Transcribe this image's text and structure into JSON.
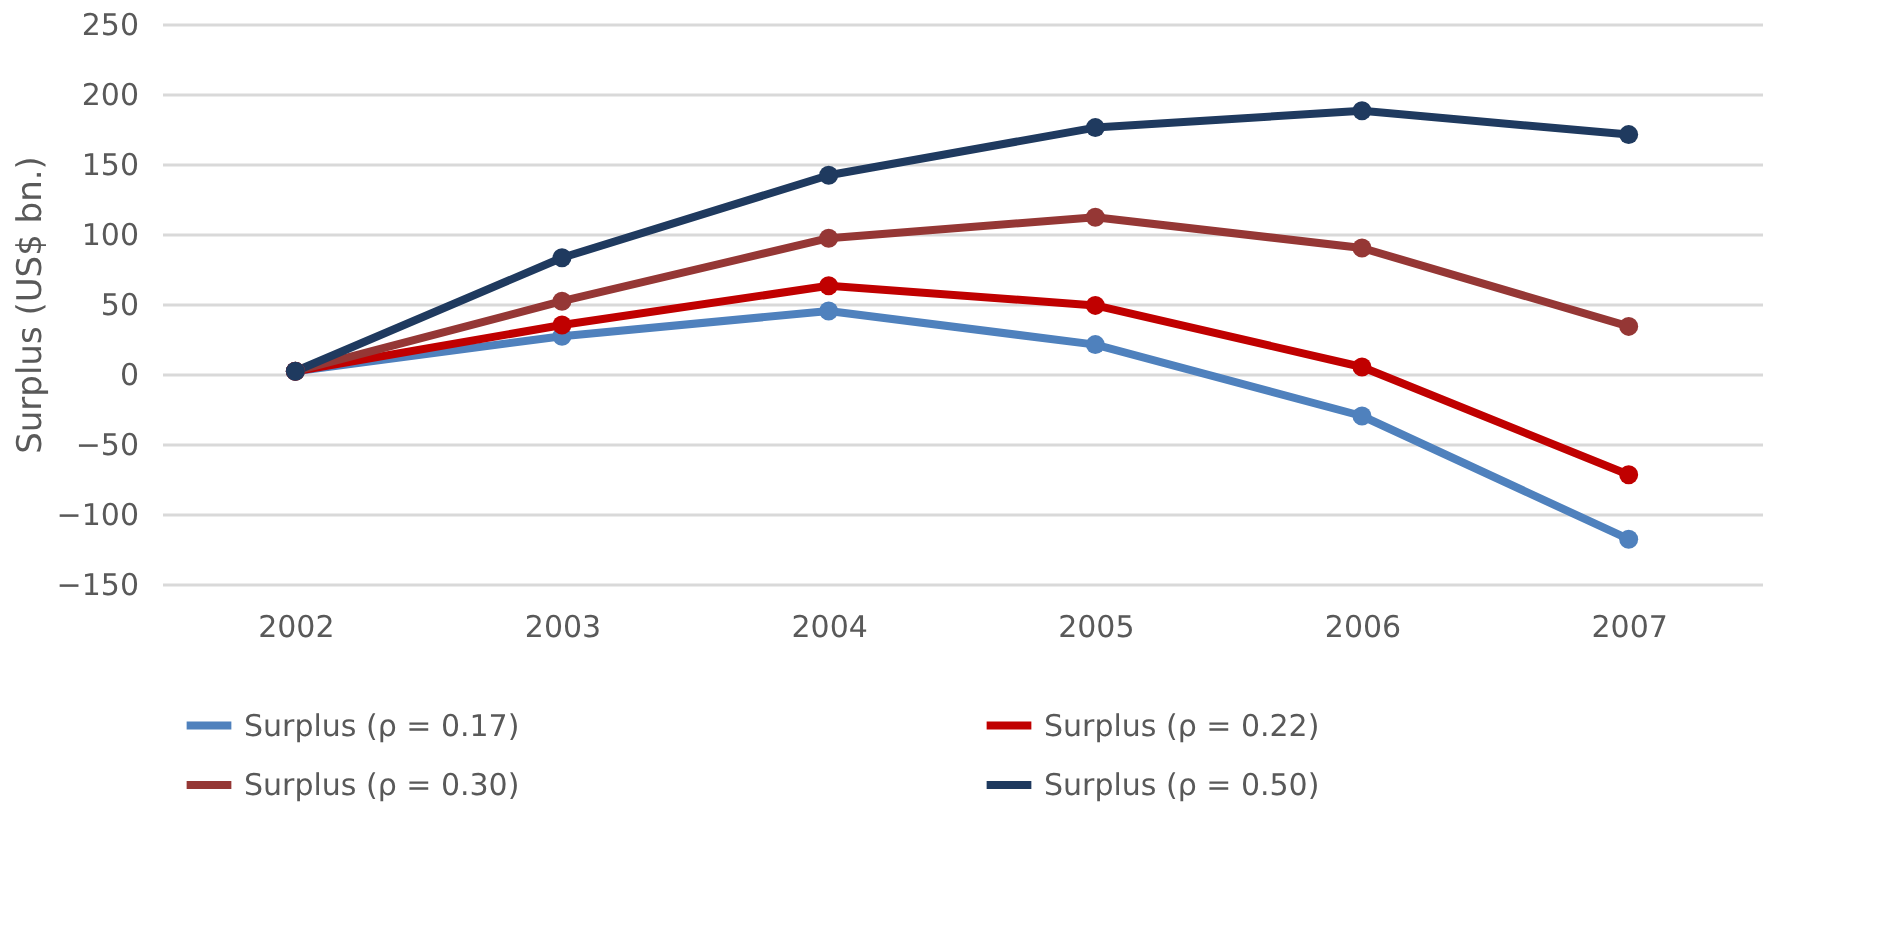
{
  "chart_data": {
    "type": "line",
    "ylabel": "Surplus (US$ bn.)",
    "categories": [
      "2002",
      "2003",
      "2004",
      "2005",
      "2006",
      "2007"
    ],
    "series": [
      {
        "name": "Surplus  (ρ = 0.17)",
        "color": "#4f81bd",
        "values": [
          2,
          27,
          45,
          21,
          -30,
          -118
        ]
      },
      {
        "name": "Surplus  (ρ = 0.22)",
        "color": "#c00000",
        "values": [
          2,
          35,
          63,
          49,
          5,
          -72
        ]
      },
      {
        "name": "Surplus  (ρ = 0.30)",
        "color": "#953735",
        "values": [
          2,
          52,
          97,
          112,
          90,
          34
        ]
      },
      {
        "name": "Surplus  (ρ = 0.50)",
        "color": "#1f3a5f",
        "values": [
          2,
          83,
          142,
          176,
          188,
          171
        ]
      }
    ],
    "ylim": [
      -150,
      250
    ],
    "yticks": [
      -150,
      -100,
      -50,
      0,
      50,
      100,
      150,
      200,
      250
    ],
    "grid": "y",
    "legend": "bottom",
    "marker": "circle",
    "line_style": "solid"
  }
}
